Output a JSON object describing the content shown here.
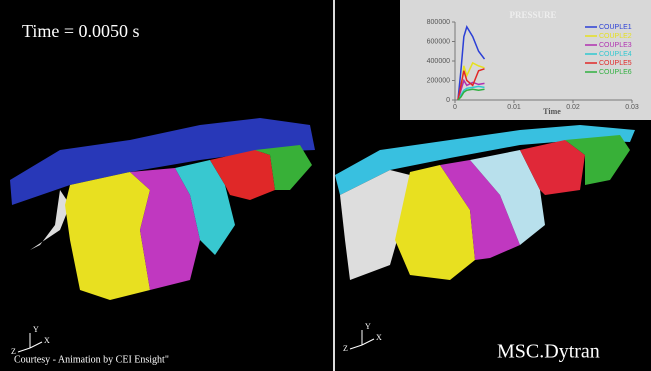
{
  "panels": {
    "left": {
      "caption": "Time = 0.0050 s",
      "credit": "Courtesy - Animation by CEI Ensight\"",
      "triad": {
        "x": "X",
        "y": "Y",
        "z": "Z"
      }
    },
    "right": {
      "caption": "MSC.Dytran",
      "triad": {
        "x": "X",
        "y": "Y",
        "z": "Z"
      }
    }
  },
  "chart_data": {
    "type": "line",
    "title": "PRESSURE",
    "x_label": "Time",
    "x": [
      0.0005,
      0.001,
      0.0015,
      0.002,
      0.003,
      0.004,
      0.005
    ],
    "series": [
      {
        "name": "COUPLE1",
        "color": "#2b3fd6",
        "values": [
          0,
          300000,
          650000,
          750000,
          650000,
          500000,
          420000
        ]
      },
      {
        "name": "COUPLE2",
        "color": "#e6e020",
        "values": [
          0,
          100000,
          350000,
          250000,
          380000,
          350000,
          330000
        ]
      },
      {
        "name": "COUPLE3",
        "color": "#b030b0",
        "values": [
          0,
          100000,
          200000,
          150000,
          180000,
          160000,
          170000
        ]
      },
      {
        "name": "COUPLE4",
        "color": "#30c8d0",
        "values": [
          0,
          50000,
          100000,
          120000,
          130000,
          140000,
          130000
        ]
      },
      {
        "name": "COUPLE5",
        "color": "#e02828",
        "values": [
          0,
          150000,
          300000,
          200000,
          150000,
          300000,
          320000
        ]
      },
      {
        "name": "COUPLE6",
        "color": "#30b040",
        "values": [
          0,
          30000,
          80000,
          100000,
          110000,
          100000,
          110000
        ]
      }
    ],
    "xlim": [
      0,
      0.03
    ],
    "xticks": [
      0,
      0.01,
      0.02,
      0.03
    ],
    "ylim": [
      0,
      800000
    ],
    "yticks": [
      0,
      200000,
      400000,
      600000,
      800000
    ]
  }
}
